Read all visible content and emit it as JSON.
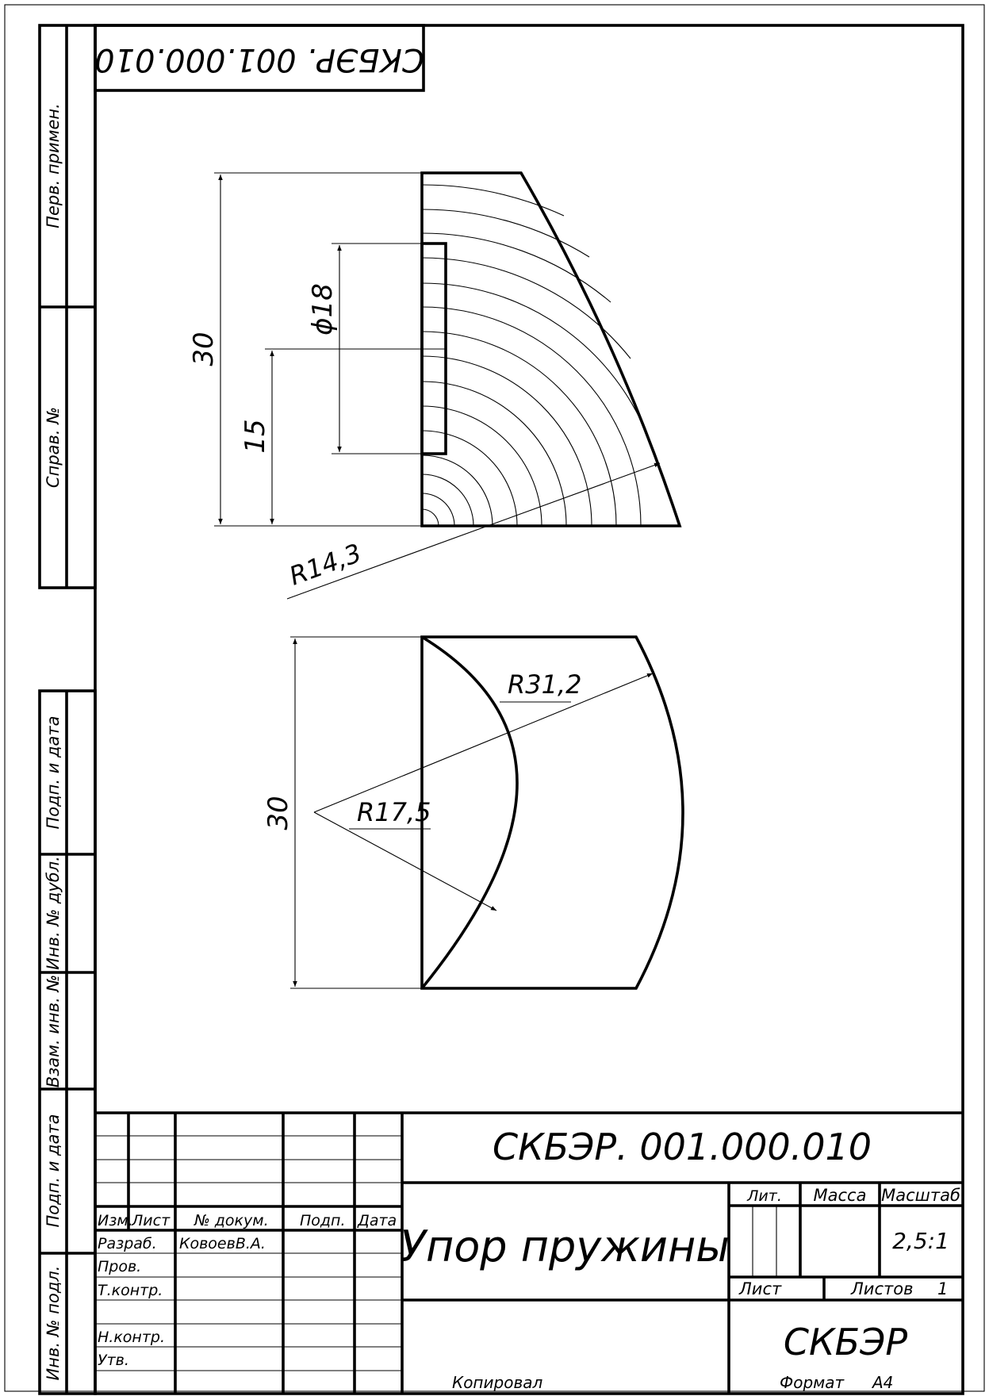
{
  "stamp": {
    "designation": "СКБЭР. 001.000.010",
    "name": "Упор пружины",
    "organization": "СКБЭР",
    "headers": {
      "izm": "Изм.",
      "list": "Лист",
      "doc": "№ докум.",
      "sign": "Подп.",
      "date": "Дата"
    },
    "roles": {
      "dev": "Разраб.",
      "check": "Пров.",
      "tcontrol": "Т.контр.",
      "ncontrol": "Н.контр.",
      "approve": "Утв."
    },
    "developer": "КовоевВ.А.",
    "lit_label": "Лит.",
    "mass_label": "Масса",
    "scale_label": "Масштаб",
    "scale_value": "2,5:1",
    "sheet_label": "Лист",
    "sheets_label": "Листов",
    "sheets_value": "1"
  },
  "top_designation": "СКБЭР. 001.000.010",
  "side": {
    "perv": "Перв. примен.",
    "sprav": "Справ. №",
    "podp1": "Подп. и дата",
    "inv_dubl": "Инв. № дубл.",
    "vzam": "Взам. инв. №",
    "podp2": "Подп. и дата",
    "inv_podl": "Инв. № подл."
  },
  "dims": {
    "d30_top": "30",
    "d15": "15",
    "phi18": "ϕ18",
    "r143": "R14,3",
    "r312": "R31,2",
    "r175": "R17,5",
    "d30_bottom": "30"
  },
  "footer": {
    "copied": "Копировал",
    "format_label": "Формат",
    "format_value": "А4"
  }
}
